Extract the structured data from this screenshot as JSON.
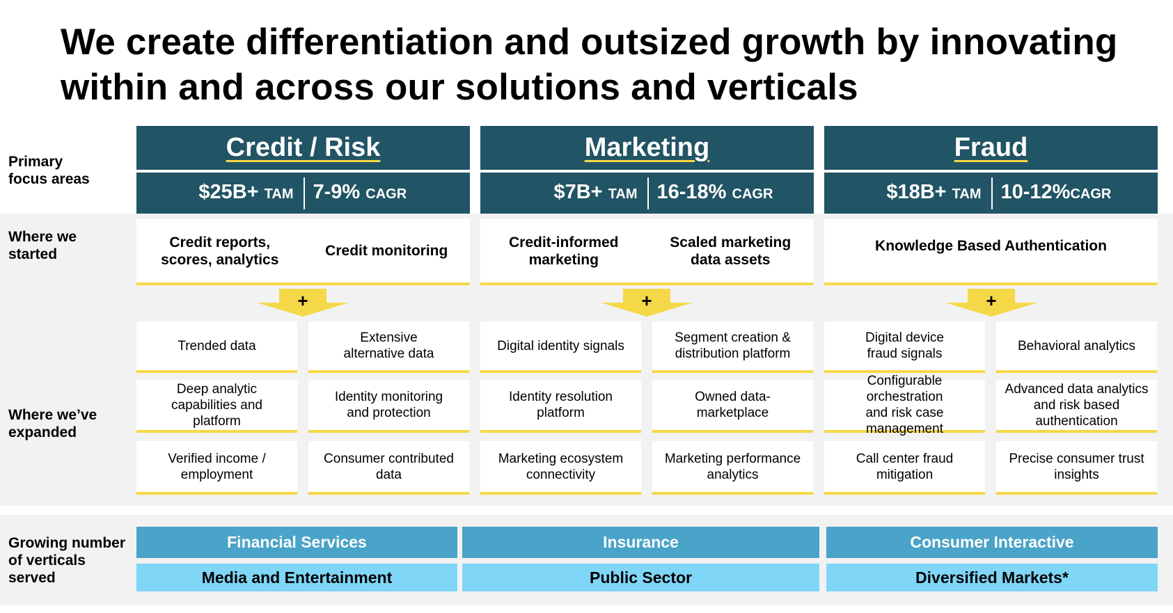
{
  "title": {
    "line1": "We create differentiation and outsized growth by innovating",
    "line2": "within and across our solutions and verticals"
  },
  "row_labels": {
    "primary_line1": "Primary",
    "primary_line2": "focus areas",
    "started_line1": "Where we",
    "started_line2": "started",
    "expanded_line1": "Where we’ve",
    "expanded_line2": "expanded",
    "verticals_line1": "Growing number",
    "verticals_line2": "of verticals",
    "verticals_line3": "served"
  },
  "columns": [
    {
      "title": "Credit / Risk",
      "tam_value": "$25B+",
      "tam_unit": "TAM",
      "cagr_value": "7-9%",
      "cagr_unit": "CAGR",
      "started": [
        {
          "line1": "Credit reports,",
          "line2": "scores, analytics"
        },
        {
          "line1": "Credit monitoring",
          "line2": ""
        }
      ],
      "plus": "+",
      "expanded": [
        {
          "line1": "Trended data",
          "line2": "",
          "line3": ""
        },
        {
          "line1": "Extensive",
          "line2": "alternative data",
          "line3": ""
        },
        {
          "line1": "Deep analytic",
          "line2": "capabilities and",
          "line3": "platform"
        },
        {
          "line1": "Identity monitoring",
          "line2": "and protection",
          "line3": ""
        },
        {
          "line1": "Verified income /",
          "line2": "employment",
          "line3": ""
        },
        {
          "line1": "Consumer contributed",
          "line2": "data",
          "line3": ""
        }
      ]
    },
    {
      "title": "Marketing",
      "tam_value": "$7B+",
      "tam_unit": "TAM",
      "cagr_value": "16-18%",
      "cagr_unit": "CAGR",
      "started": [
        {
          "line1": "Credit-informed",
          "line2": "marketing"
        },
        {
          "line1": "Scaled marketing",
          "line2": "data assets"
        }
      ],
      "plus": "+",
      "expanded": [
        {
          "line1": "Digital identity signals",
          "line2": "",
          "line3": ""
        },
        {
          "line1": "Segment creation &",
          "line2": "distribution platform",
          "line3": ""
        },
        {
          "line1": "Identity resolution",
          "line2": "platform",
          "line3": ""
        },
        {
          "line1": "Owned data-",
          "line2": "marketplace",
          "line3": ""
        },
        {
          "line1": "Marketing ecosystem",
          "line2": "connectivity",
          "line3": ""
        },
        {
          "line1": "Marketing performance",
          "line2": "analytics",
          "line3": ""
        }
      ]
    },
    {
      "title": "Fraud",
      "tam_value": "$18B+",
      "tam_unit": "TAM",
      "cagr_value": "10-12%",
      "cagr_unit": "CAGR",
      "started": [
        {
          "line1": "Knowledge Based Authentication",
          "line2": ""
        }
      ],
      "plus": "+",
      "expanded": [
        {
          "line1": "Digital device",
          "line2": "fraud signals",
          "line3": ""
        },
        {
          "line1": "Behavioral analytics",
          "line2": "",
          "line3": ""
        },
        {
          "line1": "Configurable orchestration",
          "line2": "and risk case",
          "line3": "management"
        },
        {
          "line1": "Advanced data analytics",
          "line2": "and risk based",
          "line3": "authentication"
        },
        {
          "line1": "Call center fraud",
          "line2": "mitigation",
          "line3": ""
        },
        {
          "line1": "Precise consumer trust",
          "line2": "insights",
          "line3": ""
        }
      ]
    }
  ],
  "verticals": {
    "row1": [
      "Financial Services",
      "Insurance",
      "Consumer Interactive"
    ],
    "row2": [
      "Media and Entertainment",
      "Public Sector",
      "Diversified Markets*"
    ]
  },
  "colors": {
    "header_bg": "#215464",
    "accent_yellow": "#f5d847",
    "vertical_dark": "#4aa3c8",
    "vertical_light": "#7fd6f7",
    "band_bg": "#f2f2f2"
  }
}
